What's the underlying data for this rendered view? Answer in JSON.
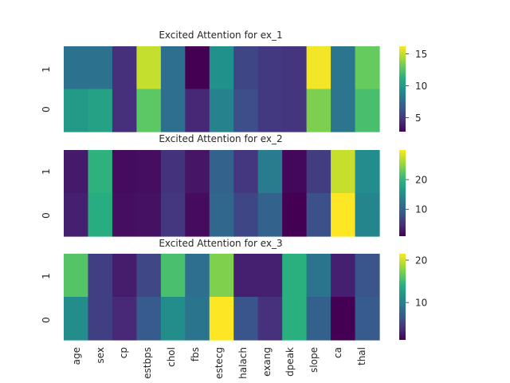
{
  "figure": {
    "features": [
      "age",
      "sex",
      "cp",
      "estbps",
      "chol",
      "fbs",
      "estecg",
      "halach",
      "exang",
      "dpeak",
      "slope",
      "ca",
      "thal"
    ]
  },
  "chart_data": [
    {
      "type": "heatmap",
      "title": "Excited Attention for ex_1",
      "rows": [
        "1",
        "0"
      ],
      "columns": [
        "age",
        "sex",
        "cp",
        "estbps",
        "chol",
        "fbs",
        "estecg",
        "halach",
        "exang",
        "dpeak",
        "slope",
        "ca",
        "thal"
      ],
      "values": [
        [
          7.8,
          7.8,
          4.6,
          15.0,
          7.6,
          2.8,
          9.5,
          5.6,
          5.0,
          4.8,
          16.0,
          8.0,
          13.0
        ],
        [
          10.0,
          10.5,
          4.6,
          12.8,
          7.6,
          4.3,
          8.7,
          6.0,
          5.0,
          4.8,
          13.5,
          8.0,
          12.2
        ]
      ],
      "colorbar": {
        "min": 2.8,
        "max": 16.2,
        "ticks": [
          5,
          10,
          15
        ]
      },
      "colormap": "viridis"
    },
    {
      "type": "heatmap",
      "title": "Excited Attention for ex_2",
      "rows": [
        "1",
        "0"
      ],
      "columns": [
        "age",
        "sex",
        "cp",
        "estbps",
        "chol",
        "fbs",
        "estecg",
        "halach",
        "exang",
        "dpeak",
        "slope",
        "ca",
        "thal"
      ],
      "values": [
        [
          3.0,
          19.5,
          1.8,
          2.0,
          5.0,
          2.6,
          10.0,
          5.5,
          13.0,
          1.5,
          6.0,
          27.5,
          15.0
        ],
        [
          3.5,
          19.0,
          2.0,
          2.2,
          5.5,
          1.8,
          10.5,
          7.0,
          10.0,
          0.9,
          8.0,
          30.0,
          14.0
        ]
      ],
      "colorbar": {
        "min": 0.9,
        "max": 30.0,
        "ticks": [
          10,
          20
        ]
      },
      "colormap": "viridis"
    },
    {
      "type": "heatmap",
      "title": "Excited Attention for ex_3",
      "rows": [
        "1",
        "0"
      ],
      "columns": [
        "age",
        "sex",
        "cp",
        "estbps",
        "chol",
        "fbs",
        "estecg",
        "halach",
        "exang",
        "dpeak",
        "slope",
        "ca",
        "thal"
      ],
      "values": [
        [
          16.0,
          5.0,
          2.8,
          5.5,
          15.5,
          8.5,
          17.5,
          3.0,
          3.0,
          14.0,
          9.0,
          3.0,
          6.5
        ],
        [
          11.0,
          5.0,
          3.5,
          7.0,
          11.0,
          9.0,
          21.5,
          6.5,
          4.0,
          14.0,
          7.5,
          1.2,
          7.0
        ]
      ],
      "colorbar": {
        "min": 1.2,
        "max": 21.5,
        "ticks": [
          10,
          20
        ]
      },
      "colormap": "viridis"
    }
  ]
}
